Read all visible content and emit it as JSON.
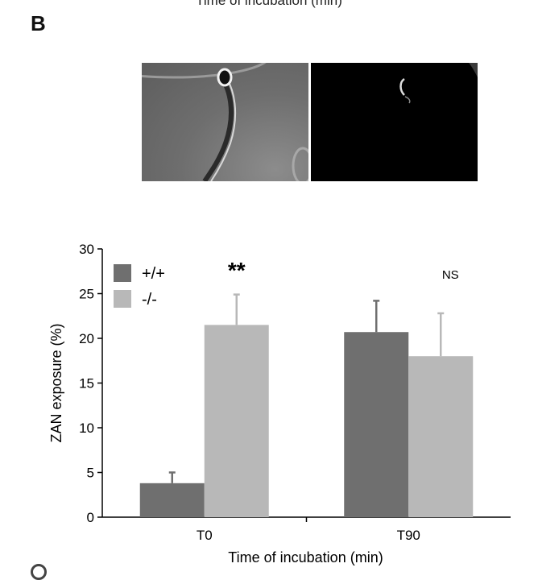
{
  "top_cut_text": "Time of incubation (min)",
  "panel_label": "B",
  "images": {
    "left_icon": "phase-contrast-sperm-icon",
    "right_icon": "fluorescence-sperm-icon"
  },
  "chart_data": {
    "type": "bar",
    "categories": [
      "T0",
      "T90"
    ],
    "series": [
      {
        "name": "+/+",
        "values": [
          3.8,
          20.7
        ],
        "errors": [
          1.2,
          3.5
        ],
        "color": "#6f6f6f"
      },
      {
        "name": "-/-",
        "values": [
          21.5,
          18.0
        ],
        "errors": [
          3.4,
          4.8
        ],
        "color": "#b8b8b8"
      }
    ],
    "xlabel": "Time of incubation (min)",
    "ylabel": "ZAN exposure (%)",
    "ylim": [
      0,
      30
    ],
    "yticks": [
      0,
      5,
      10,
      15,
      20,
      25,
      30
    ],
    "annotations": [
      {
        "category": "T0",
        "text": "**"
      },
      {
        "category": "T90",
        "text": "NS"
      }
    ],
    "legend_placement": "top-left",
    "grid": false
  }
}
